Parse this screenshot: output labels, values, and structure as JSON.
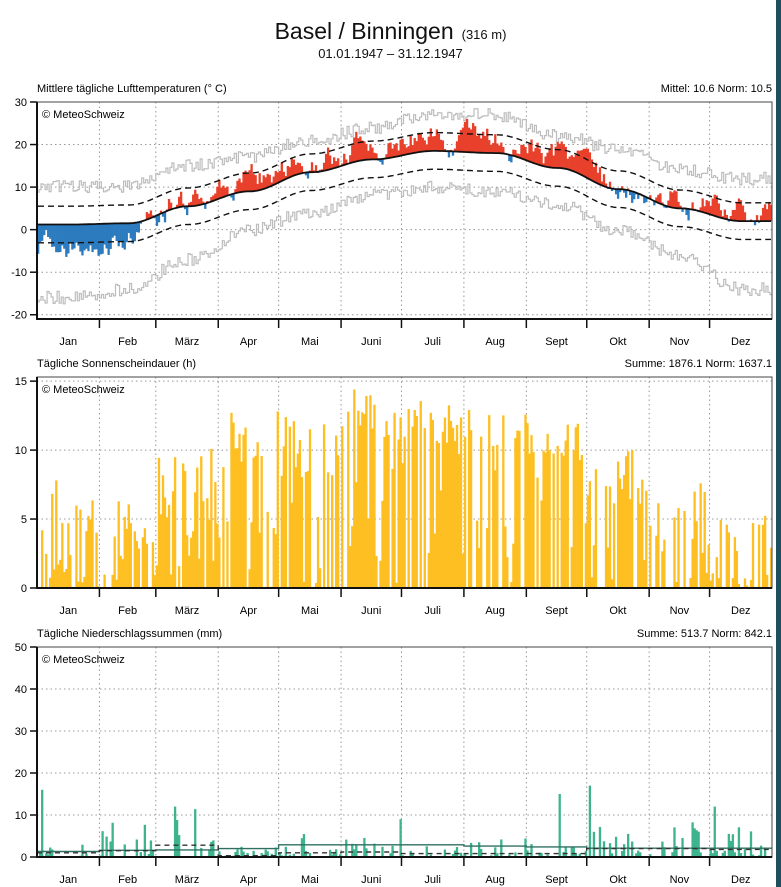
{
  "header": {
    "station": "Basel / Binningen",
    "elevation": "(316 m)",
    "period": "01.01.1947 – 31.12.1947"
  },
  "colors": {
    "warm": "#e8402b",
    "cold": "#2c7bbf",
    "sunshine": "#fdbf21",
    "precip": "#3db48d",
    "extreme": "#bdbdbd",
    "border": "#1e4f5e"
  },
  "chart_data": [
    {
      "type": "bar",
      "title": "Mittlere tägliche Lufttemperaturen (° C)",
      "copyright": "© MeteoSchweiz",
      "stats": {
        "mittel_label": "Mittel: 10.6",
        "norm_label": "Norm: 10.5",
        "mittel": 10.6,
        "norm": 10.5
      },
      "months": [
        "Jan",
        "Feb",
        "März",
        "Apr",
        "Mai",
        "Juni",
        "Juli",
        "Aug",
        "Sept",
        "Okt",
        "Nov",
        "Dez"
      ],
      "yticks": [
        30,
        20,
        10,
        0,
        -10,
        -20
      ],
      "ylim": [
        -21,
        30
      ],
      "norm_monthly_mean": [
        1.2,
        1.5,
        5.5,
        9.0,
        13.5,
        16.5,
        18.5,
        18.0,
        14.5,
        9.5,
        5.0,
        2.0
      ],
      "norm_band_offset": 4.3,
      "monthly_mean_1947": [
        -3.5,
        -1.5,
        6.5,
        12.0,
        15.5,
        19.0,
        21.0,
        20.5,
        17.0,
        9.5,
        7.0,
        3.0
      ],
      "extreme_max_monthly": [
        10,
        10,
        15,
        17,
        21,
        24,
        27,
        27,
        22,
        19,
        14,
        12
      ],
      "extreme_min_monthly": [
        -16,
        -14,
        -7,
        0,
        4,
        8,
        10,
        9,
        6,
        0,
        -6,
        -14
      ],
      "series_note": "daily anomaly bars: red above norm, blue below norm"
    },
    {
      "type": "bar",
      "title": "Tägliche Sonnenscheindauer (h)",
      "copyright": "© MeteoSchweiz",
      "stats": {
        "summe_label": "Summe: 1876.1",
        "norm_label": "Norm: 1637.1",
        "summe": 1876.1,
        "norm": 1637.1
      },
      "months": [
        "Jan",
        "Feb",
        "März",
        "Apr",
        "Mai",
        "Juni",
        "Juli",
        "Aug",
        "Sept",
        "Okt",
        "Nov",
        "Dez"
      ],
      "yticks": [
        15,
        10,
        5,
        0
      ],
      "ylim": [
        0,
        15.3
      ],
      "monthly_peak_hours": [
        8.0,
        6.5,
        10.3,
        12.8,
        13.0,
        14.8,
        14.2,
        13.6,
        12.0,
        10.5,
        7.8,
        5.4
      ],
      "monthly_typical_hours": [
        2.5,
        1.5,
        3.5,
        8.0,
        8.0,
        10.5,
        10.5,
        10.0,
        9.5,
        6.5,
        3.0,
        1.0
      ]
    },
    {
      "type": "bar",
      "title": "Tägliche Niederschlagssummen (mm)",
      "copyright": "© MeteoSchweiz",
      "stats": {
        "summe_label": "Summe: 513.7",
        "norm_label": "Norm: 842.1",
        "summe": 513.7,
        "norm": 842.1
      },
      "months": [
        "Jan",
        "Feb",
        "März",
        "Apr",
        "Mai",
        "Juni",
        "Juli",
        "Aug",
        "Sept",
        "Okt",
        "Nov",
        "Dez"
      ],
      "yticks": [
        50,
        40,
        30,
        20,
        10,
        0
      ],
      "ylim": [
        0,
        50
      ],
      "monthly_mean_daily_1947": [
        1.0,
        1.5,
        2.8,
        0.3,
        1.0,
        1.2,
        0.8,
        0.8,
        0.8,
        2.0,
        2.0,
        1.8
      ],
      "norm_mean_daily": [
        1.3,
        1.6,
        1.7,
        2.0,
        2.9,
        2.9,
        2.9,
        2.6,
        2.4,
        2.1,
        2.1,
        2.1
      ],
      "notable_peaks": [
        {
          "month": "Jan",
          "value": 16
        },
        {
          "month": "März",
          "value": 12
        },
        {
          "month": "Juni",
          "value": 9
        },
        {
          "month": "Sept",
          "value": 15
        },
        {
          "month": "Okt",
          "value": 17
        },
        {
          "month": "Nov",
          "value": 16
        },
        {
          "month": "Dez",
          "value": 12
        }
      ]
    }
  ]
}
